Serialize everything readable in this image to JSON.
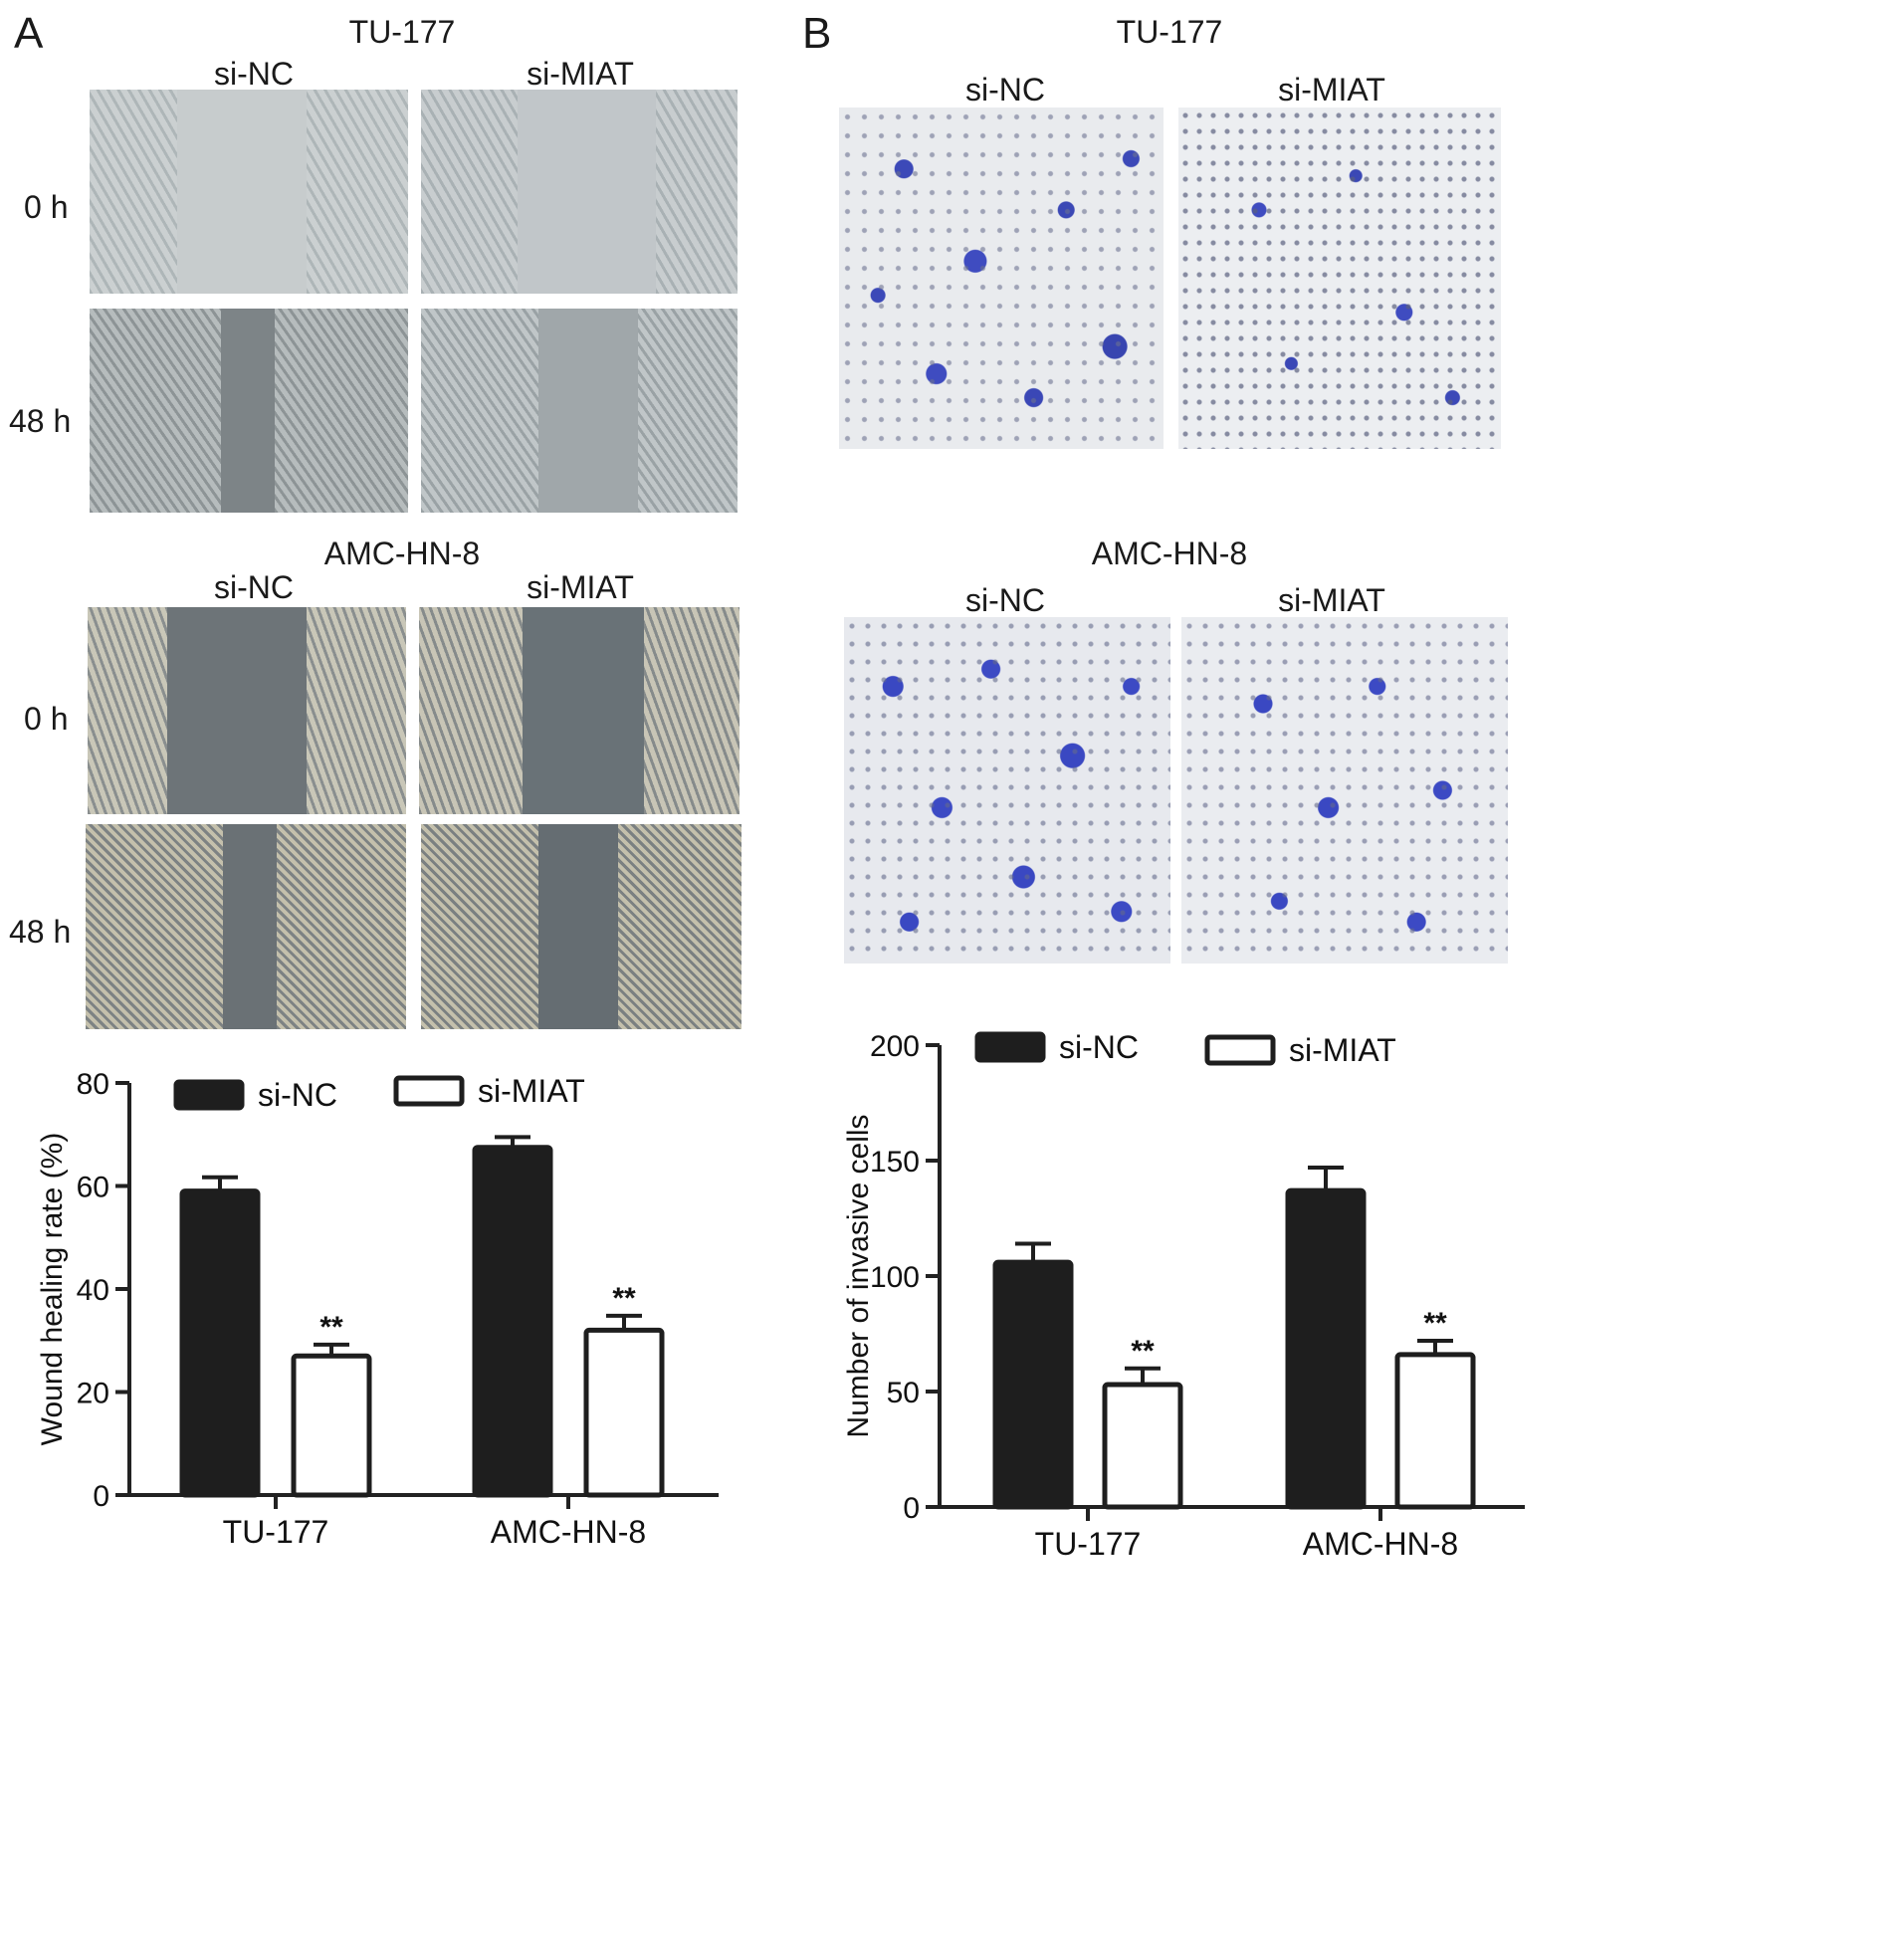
{
  "panel_a": {
    "letter": "A",
    "groups": [
      {
        "cell_line": "TU-177",
        "conditions": [
          "si-NC",
          "si-MIAT"
        ],
        "timepoints": [
          "0 h",
          "48 h"
        ]
      },
      {
        "cell_line": "AMC-HN-8",
        "conditions": [
          "si-NC",
          "si-MIAT"
        ],
        "timepoints": [
          "0 h",
          "48 h"
        ]
      }
    ]
  },
  "panel_b": {
    "letter": "B",
    "groups": [
      {
        "cell_line": "TU-177",
        "conditions": [
          "si-NC",
          "si-MIAT"
        ]
      },
      {
        "cell_line": "AMC-HN-8",
        "conditions": [
          "si-NC",
          "si-MIAT"
        ]
      }
    ]
  },
  "chart_data": [
    {
      "type": "bar",
      "title": "",
      "xlabel": "",
      "ylabel": "Wound healing rate (%)",
      "categories": [
        "TU-177",
        "AMC-HN-8"
      ],
      "ylim": [
        0,
        80
      ],
      "yticks": [
        "0",
        "20",
        "40",
        "60",
        "80"
      ],
      "series": [
        {
          "name": "si-NC",
          "values": [
            59,
            67.5
          ],
          "errors": [
            2.7,
            2
          ],
          "fill": "#1e1e1e"
        },
        {
          "name": "si-MIAT",
          "values": [
            27,
            32
          ],
          "errors": [
            2.2,
            2.8
          ],
          "fill": "#ffffff"
        }
      ],
      "annotations": [
        "**",
        "**"
      ],
      "legend": "top"
    },
    {
      "type": "bar",
      "title": "",
      "xlabel": "",
      "ylabel": "Number of invasive cells",
      "categories": [
        "TU-177",
        "AMC-HN-8"
      ],
      "ylim": [
        0,
        200
      ],
      "yticks": [
        "0",
        "50",
        "100",
        "150",
        "200"
      ],
      "series": [
        {
          "name": "si-NC",
          "values": [
            106,
            137
          ],
          "errors": [
            8,
            10
          ],
          "fill": "#1e1e1e"
        },
        {
          "name": "si-MIAT",
          "values": [
            53,
            66
          ],
          "errors": [
            7,
            6
          ],
          "fill": "#ffffff"
        }
      ],
      "annotations": [
        "**",
        "**"
      ],
      "legend": "top"
    }
  ]
}
